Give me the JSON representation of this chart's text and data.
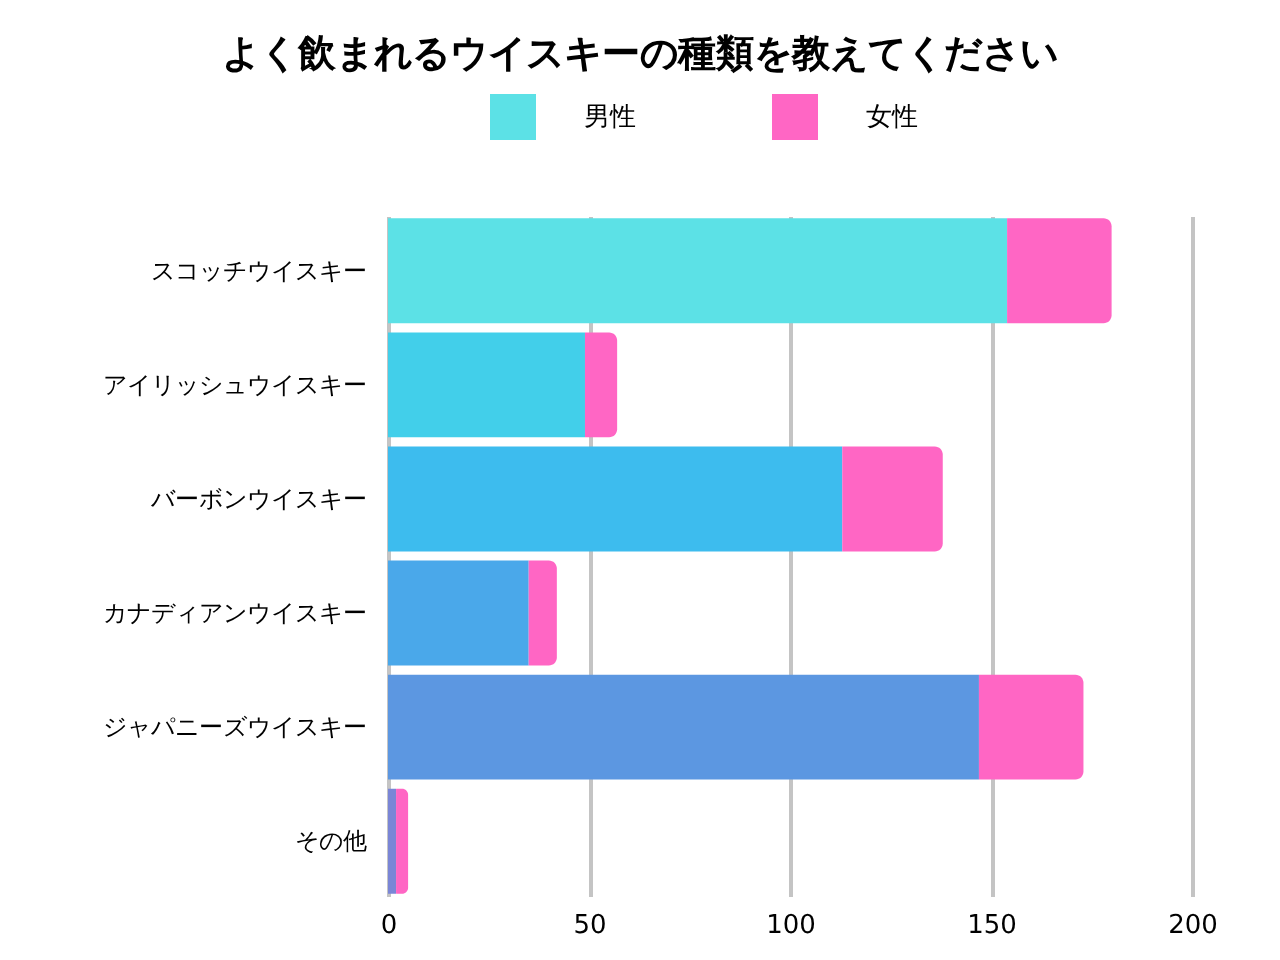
{
  "chart_data": {
    "type": "bar",
    "orientation": "horizontal",
    "stacked": true,
    "title": "よく飲まれるウイスキーの種類を教えてください",
    "categories": [
      "スコッチウイスキー",
      "アイリッシュウイスキー",
      "バーボンウイスキー",
      "カナディアンウイスキー",
      "ジャパニーズウイスキー",
      "その他"
    ],
    "series": [
      {
        "name": "男性",
        "color": "#5ce1e6",
        "colors": [
          "#5ce1e6",
          "#42cfea",
          "#3dbcee",
          "#4aa8ea",
          "#5c97e1",
          "#7a86d6"
        ],
        "values": [
          154,
          49,
          113,
          35,
          147,
          2
        ]
      },
      {
        "name": "女性",
        "color": "#ff66c4",
        "values": [
          26,
          8,
          25,
          7,
          26,
          3
        ]
      }
    ],
    "xlim": [
      0,
      200
    ],
    "xticks": [
      0,
      50,
      100,
      150,
      200
    ],
    "grid": "x",
    "legend": "top"
  }
}
